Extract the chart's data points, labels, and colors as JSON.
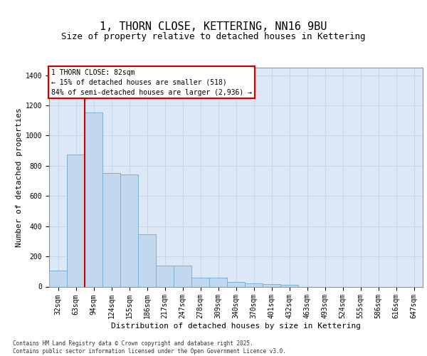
{
  "title": "1, THORN CLOSE, KETTERING, NN16 9BU",
  "subtitle": "Size of property relative to detached houses in Kettering",
  "xlabel": "Distribution of detached houses by size in Kettering",
  "ylabel": "Number of detached properties",
  "categories": [
    "32sqm",
    "63sqm",
    "94sqm",
    "124sqm",
    "155sqm",
    "186sqm",
    "217sqm",
    "247sqm",
    "278sqm",
    "309sqm",
    "340sqm",
    "370sqm",
    "401sqm",
    "432sqm",
    "463sqm",
    "493sqm",
    "524sqm",
    "555sqm",
    "586sqm",
    "616sqm",
    "647sqm"
  ],
  "values": [
    105,
    875,
    1155,
    750,
    745,
    345,
    140,
    140,
    60,
    60,
    30,
    20,
    15,
    10,
    0,
    0,
    0,
    0,
    0,
    0,
    0
  ],
  "bar_color": "#c2d8ef",
  "bar_edge_color": "#7aafd4",
  "vline_color": "#cc0000",
  "vline_x": 1.5,
  "annotation_text": "1 THORN CLOSE: 82sqm\n← 15% of detached houses are smaller (518)\n84% of semi-detached houses are larger (2,936) →",
  "annotation_box_edgecolor": "#cc0000",
  "annotation_box_facecolor": "#ffffff",
  "ylim_max": 1450,
  "yticks": [
    0,
    200,
    400,
    600,
    800,
    1000,
    1200,
    1400
  ],
  "grid_color": "#c8d4e8",
  "bg_color": "#dce8f5",
  "footer_line1": "Contains HM Land Registry data © Crown copyright and database right 2025.",
  "footer_line2": "Contains public sector information licensed under the Open Government Licence v3.0.",
  "title_fontsize": 11,
  "subtitle_fontsize": 9,
  "ylabel_fontsize": 8,
  "xlabel_fontsize": 8,
  "tick_fontsize": 7,
  "annotation_fontsize": 7,
  "footer_fontsize": 5.5
}
